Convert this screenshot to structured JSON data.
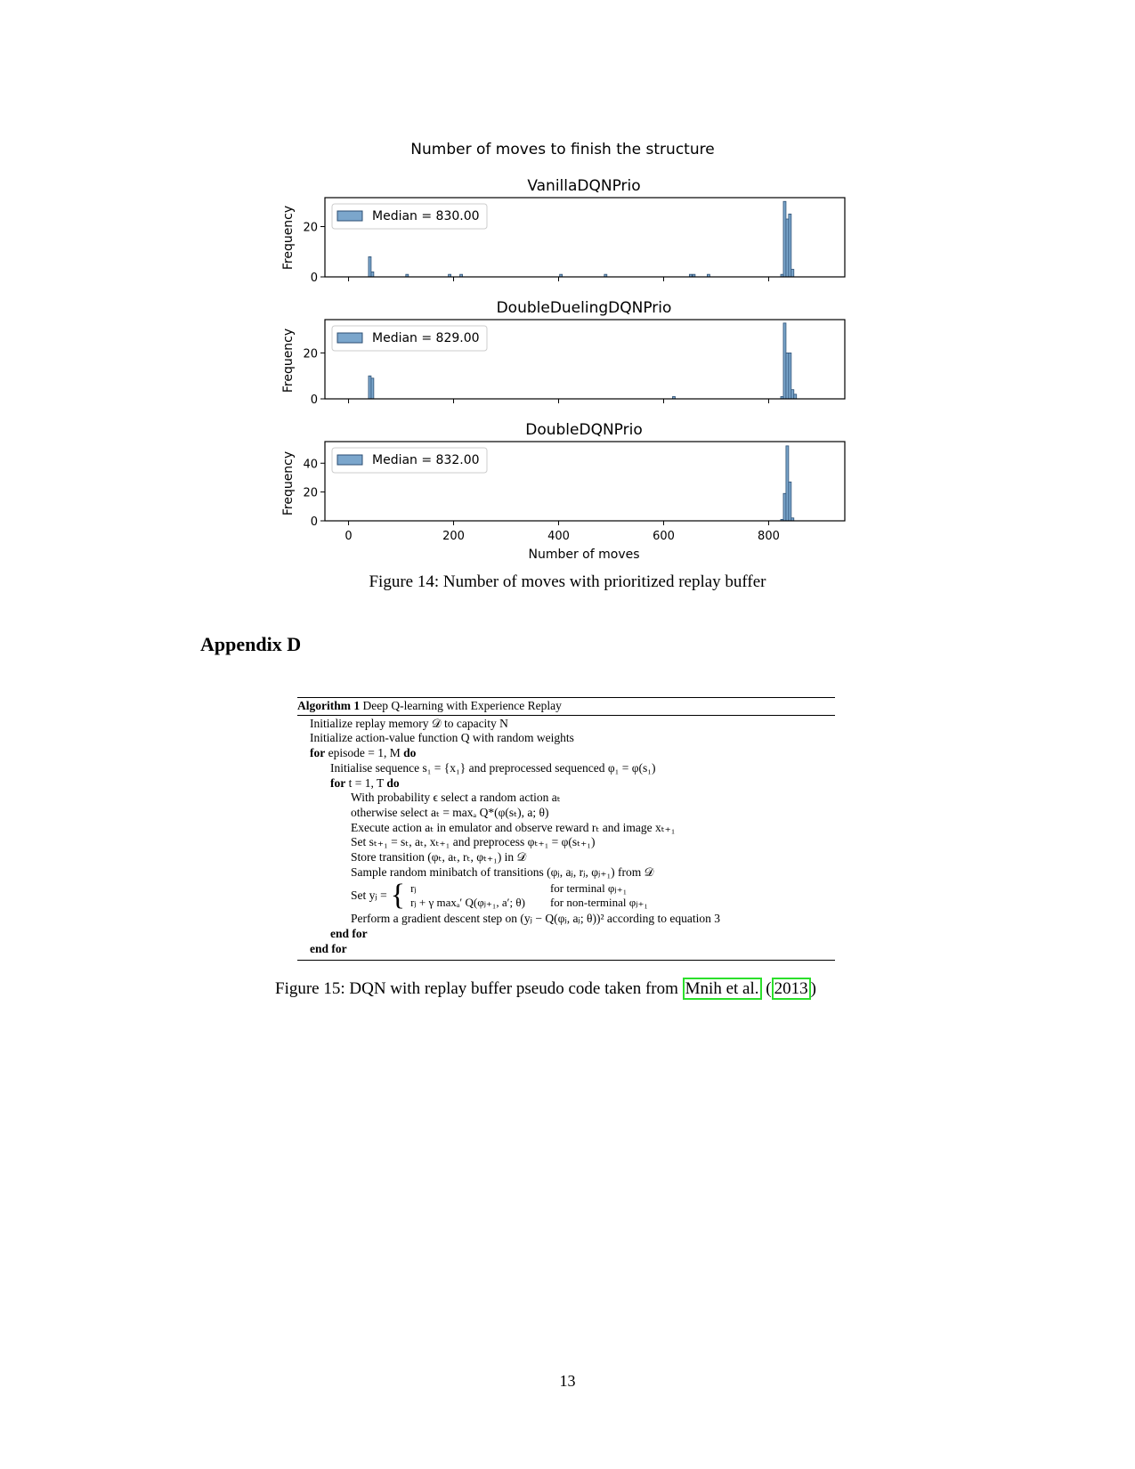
{
  "chart_data": [
    {
      "type": "histogram",
      "suptitle": "Number of moves to finish the structure",
      "title": "VanillaDQNPrio",
      "ylabel": "Frequency",
      "xlabel": "",
      "xlim": [
        -45,
        945
      ],
      "ylim": [
        0,
        31.5
      ],
      "yticks": [
        0,
        20
      ],
      "legend": "Median = 830.00",
      "bars": [
        {
          "x": 38,
          "y": 8
        },
        {
          "x": 43,
          "y": 2
        },
        {
          "x": 109,
          "y": 1
        },
        {
          "x": 190,
          "y": 1
        },
        {
          "x": 212,
          "y": 1
        },
        {
          "x": 402,
          "y": 1
        },
        {
          "x": 487,
          "y": 1
        },
        {
          "x": 649,
          "y": 1
        },
        {
          "x": 655,
          "y": 1
        },
        {
          "x": 683,
          "y": 1
        },
        {
          "x": 823,
          "y": 1
        },
        {
          "x": 828,
          "y": 30
        },
        {
          "x": 833,
          "y": 23
        },
        {
          "x": 838,
          "y": 25
        },
        {
          "x": 843,
          "y": 3
        }
      ]
    },
    {
      "type": "histogram",
      "title": "DoubleDuelingDQNPrio",
      "ylabel": "Frequency",
      "xlabel": "",
      "xlim": [
        -45,
        945
      ],
      "ylim": [
        0,
        34.5
      ],
      "yticks": [
        0,
        20
      ],
      "legend": "Median = 829.00",
      "bars": [
        {
          "x": 38,
          "y": 10
        },
        {
          "x": 43,
          "y": 9
        },
        {
          "x": 617,
          "y": 1
        },
        {
          "x": 823,
          "y": 1
        },
        {
          "x": 828,
          "y": 33
        },
        {
          "x": 833,
          "y": 20
        },
        {
          "x": 838,
          "y": 20
        },
        {
          "x": 843,
          "y": 4
        },
        {
          "x": 848,
          "y": 2
        }
      ]
    },
    {
      "type": "histogram",
      "title": "DoubleDQNPrio",
      "ylabel": "Frequency",
      "xlabel": "Number of moves",
      "xlim": [
        -45,
        945
      ],
      "ylim": [
        0,
        55
      ],
      "yticks": [
        0,
        20,
        40
      ],
      "xticks": [
        0,
        200,
        400,
        600,
        800
      ],
      "legend": "Median = 832.00",
      "bars": [
        {
          "x": 823,
          "y": 1
        },
        {
          "x": 828,
          "y": 19
        },
        {
          "x": 833,
          "y": 52
        },
        {
          "x": 838,
          "y": 27
        },
        {
          "x": 843,
          "y": 2
        }
      ]
    }
  ],
  "captions": {
    "fig14": "Figure 14: Number of moves with prioritized replay buffer",
    "fig15_prefix": "Figure 15: DQN with replay buffer pseudo code taken from ",
    "fig15_cite_author": "Mnih et al.",
    "fig15_cite_open": " (",
    "fig15_cite_year": "2013",
    "fig15_cite_close": ")"
  },
  "section_title": "Appendix D",
  "algorithm": {
    "label": "Algorithm 1",
    "title": "Deep Q-learning with Experience Replay",
    "lines": [
      "Initialize replay memory 𝒟 to capacity N",
      "Initialize action-value function Q with random weights",
      "for episode = 1, M do",
      "Initialise sequence s₁ = {x₁} and preprocessed sequenced φ₁ = φ(s₁)",
      "for t = 1, T do",
      "With probability ϵ select a random action aₜ",
      "otherwise select aₜ = maxₐ Q*(φ(sₜ), a; θ)",
      "Execute action aₜ in emulator and observe reward rₜ and image xₜ₊₁",
      "Set sₜ₊₁ = sₜ, aₜ, xₜ₊₁ and preprocess φₜ₊₁ = φ(sₜ₊₁)",
      "Store transition (φₜ, aₜ, rₜ, φₜ₊₁) in 𝒟",
      "Sample random minibatch of transitions (φⱼ, aⱼ, rⱼ, φⱼ₊₁) from 𝒟",
      "Perform a gradient descent step on (yⱼ − Q(φⱼ, aⱼ; θ))² according to equation 3",
      "end for",
      "end for"
    ],
    "set_label": "Set yⱼ =",
    "case1": "rⱼ",
    "case2": "rⱼ + γ maxₐ′ Q(φⱼ₊₁, a′; θ)",
    "cond1": "for terminal φⱼ₊₁",
    "cond2": "for non-terminal φⱼ₊₁"
  },
  "page_number": "13",
  "colors": {
    "bar_fill": "#7ba6cc",
    "bar_edge": "#2c4f73",
    "citation_box": "#2bdf2b"
  }
}
